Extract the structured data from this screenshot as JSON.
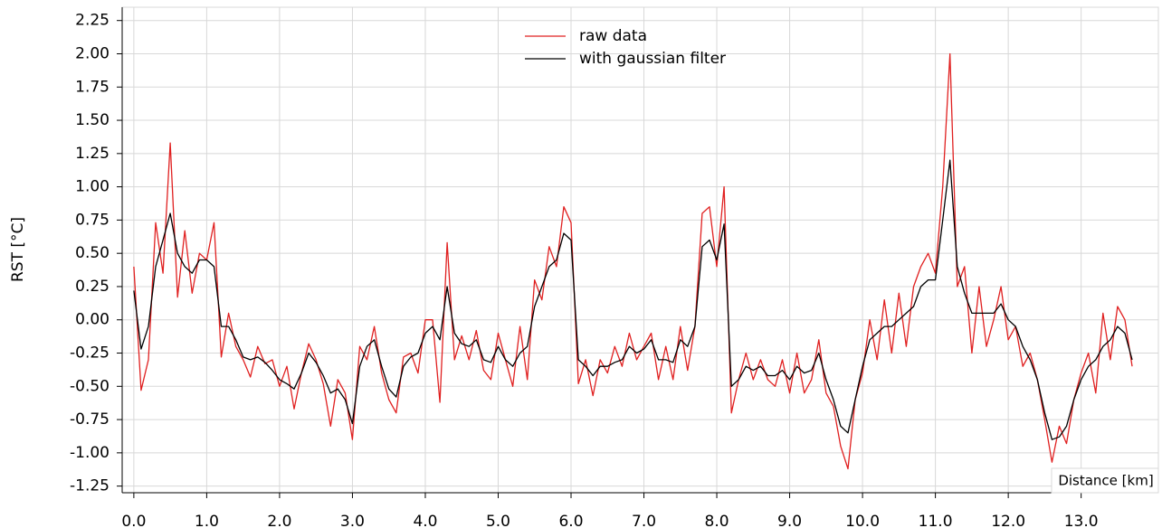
{
  "chart_data": {
    "type": "line",
    "y_label": "RST [°C]",
    "x_label": "Distance [km]",
    "x": [
      0.0,
      0.1,
      0.2,
      0.3,
      0.4,
      0.5,
      0.6,
      0.7,
      0.8,
      0.9,
      1.0,
      1.1,
      1.2,
      1.3,
      1.4,
      1.5,
      1.6,
      1.7,
      1.8,
      1.9,
      2.0,
      2.1,
      2.2,
      2.3,
      2.4,
      2.5,
      2.6,
      2.7,
      2.8,
      2.9,
      3.0,
      3.1,
      3.2,
      3.3,
      3.4,
      3.5,
      3.6,
      3.7,
      3.8,
      3.9,
      4.0,
      4.1,
      4.2,
      4.3,
      4.4,
      4.5,
      4.6,
      4.7,
      4.8,
      4.9,
      5.0,
      5.1,
      5.2,
      5.3,
      5.4,
      5.5,
      5.6,
      5.7,
      5.8,
      5.9,
      6.0,
      6.1,
      6.2,
      6.3,
      6.4,
      6.5,
      6.6,
      6.7,
      6.8,
      6.9,
      7.0,
      7.1,
      7.2,
      7.3,
      7.4,
      7.5,
      7.6,
      7.7,
      7.8,
      7.9,
      8.0,
      8.1,
      8.2,
      8.3,
      8.4,
      8.5,
      8.6,
      8.7,
      8.8,
      8.9,
      9.0,
      9.1,
      9.2,
      9.3,
      9.4,
      9.5,
      9.6,
      9.7,
      9.8,
      9.9,
      10.0,
      10.1,
      10.2,
      10.3,
      10.4,
      10.5,
      10.6,
      10.7,
      10.8,
      10.9,
      11.0,
      11.1,
      11.2,
      11.3,
      11.4,
      11.5,
      11.6,
      11.7,
      11.8,
      11.9,
      12.0,
      12.1,
      12.2,
      12.3,
      12.4,
      12.5,
      12.6,
      12.7,
      12.8,
      12.9,
      13.0,
      13.1,
      13.2,
      13.3,
      13.4,
      13.5,
      13.6,
      13.7
    ],
    "series": [
      {
        "name": "raw data",
        "color": "#e02020",
        "values": [
          0.4,
          -0.53,
          -0.3,
          0.73,
          0.35,
          1.33,
          0.17,
          0.67,
          0.2,
          0.5,
          0.45,
          0.73,
          -0.28,
          0.05,
          -0.2,
          -0.3,
          -0.43,
          -0.2,
          -0.33,
          -0.3,
          -0.5,
          -0.35,
          -0.67,
          -0.4,
          -0.18,
          -0.3,
          -0.48,
          -0.8,
          -0.45,
          -0.55,
          -0.9,
          -0.2,
          -0.3,
          -0.05,
          -0.4,
          -0.6,
          -0.7,
          -0.28,
          -0.25,
          -0.4,
          0.0,
          0.0,
          -0.62,
          0.58,
          -0.3,
          -0.12,
          -0.3,
          -0.08,
          -0.38,
          -0.45,
          -0.1,
          -0.3,
          -0.5,
          -0.05,
          -0.45,
          0.3,
          0.15,
          0.55,
          0.4,
          0.85,
          0.73,
          -0.48,
          -0.3,
          -0.57,
          -0.3,
          -0.4,
          -0.2,
          -0.35,
          -0.1,
          -0.3,
          -0.2,
          -0.1,
          -0.45,
          -0.2,
          -0.45,
          -0.05,
          -0.38,
          -0.05,
          0.8,
          0.85,
          0.4,
          1.0,
          -0.7,
          -0.45,
          -0.25,
          -0.45,
          -0.3,
          -0.45,
          -0.5,
          -0.3,
          -0.55,
          -0.25,
          -0.55,
          -0.45,
          -0.15,
          -0.55,
          -0.65,
          -0.95,
          -1.12,
          -0.6,
          -0.4,
          0.0,
          -0.3,
          0.15,
          -0.25,
          0.2,
          -0.2,
          0.25,
          0.4,
          0.5,
          0.35,
          1.0,
          2.0,
          0.25,
          0.4,
          -0.25,
          0.25,
          -0.2,
          0.0,
          0.25,
          -0.15,
          -0.05,
          -0.35,
          -0.25,
          -0.45,
          -0.75,
          -1.07,
          -0.8,
          -0.93,
          -0.6,
          -0.4,
          -0.25,
          -0.55,
          0.05,
          -0.3,
          0.1,
          0.0,
          -0.35
        ]
      },
      {
        "name": "with gaussian filter",
        "color": "#000000",
        "values": [
          0.22,
          -0.22,
          -0.05,
          0.4,
          0.6,
          0.8,
          0.5,
          0.4,
          0.35,
          0.45,
          0.45,
          0.4,
          -0.05,
          -0.05,
          -0.15,
          -0.28,
          -0.3,
          -0.28,
          -0.32,
          -0.38,
          -0.45,
          -0.48,
          -0.52,
          -0.4,
          -0.25,
          -0.32,
          -0.42,
          -0.55,
          -0.52,
          -0.6,
          -0.78,
          -0.35,
          -0.2,
          -0.15,
          -0.35,
          -0.52,
          -0.58,
          -0.35,
          -0.28,
          -0.25,
          -0.1,
          -0.05,
          -0.15,
          0.25,
          -0.1,
          -0.18,
          -0.2,
          -0.15,
          -0.3,
          -0.32,
          -0.2,
          -0.3,
          -0.35,
          -0.25,
          -0.2,
          0.1,
          0.25,
          0.4,
          0.45,
          0.65,
          0.6,
          -0.3,
          -0.35,
          -0.42,
          -0.35,
          -0.35,
          -0.32,
          -0.3,
          -0.2,
          -0.25,
          -0.22,
          -0.15,
          -0.3,
          -0.3,
          -0.32,
          -0.15,
          -0.2,
          -0.05,
          0.55,
          0.6,
          0.45,
          0.72,
          -0.5,
          -0.45,
          -0.35,
          -0.38,
          -0.35,
          -0.42,
          -0.42,
          -0.38,
          -0.45,
          -0.35,
          -0.4,
          -0.38,
          -0.25,
          -0.45,
          -0.6,
          -0.8,
          -0.85,
          -0.6,
          -0.35,
          -0.15,
          -0.1,
          -0.05,
          -0.05,
          0.0,
          0.05,
          0.1,
          0.25,
          0.3,
          0.3,
          0.75,
          1.2,
          0.4,
          0.2,
          0.05,
          0.05,
          0.05,
          0.05,
          0.12,
          0.0,
          -0.05,
          -0.2,
          -0.3,
          -0.45,
          -0.7,
          -0.9,
          -0.88,
          -0.8,
          -0.6,
          -0.45,
          -0.35,
          -0.3,
          -0.2,
          -0.15,
          -0.05,
          -0.1,
          -0.3
        ]
      }
    ],
    "xlim": [
      -0.16,
      14.06
    ],
    "ylim": [
      -1.3,
      2.35
    ],
    "xticks": [
      {
        "value": 0,
        "label": "0.0"
      },
      {
        "value": 1,
        "label": "1.0"
      },
      {
        "value": 2,
        "label": "2.0"
      },
      {
        "value": 3,
        "label": "3.0"
      },
      {
        "value": 4,
        "label": "4.0"
      },
      {
        "value": 5,
        "label": "5.0"
      },
      {
        "value": 6,
        "label": "6.0"
      },
      {
        "value": 7,
        "label": "7.0"
      },
      {
        "value": 8,
        "label": "8.0"
      },
      {
        "value": 9,
        "label": "9.0"
      },
      {
        "value": 10,
        "label": "10.0"
      },
      {
        "value": 11,
        "label": "11.0"
      },
      {
        "value": 12,
        "label": "12.0"
      },
      {
        "value": 13,
        "label": "13.0"
      }
    ],
    "yticks": [
      {
        "value": 2.25,
        "label": "2.25"
      },
      {
        "value": 2,
        "label": "2.00"
      },
      {
        "value": 1.75,
        "label": "1.75"
      },
      {
        "value": 1.5,
        "label": "1.50"
      },
      {
        "value": 1.25,
        "label": "1.25"
      },
      {
        "value": 1,
        "label": "1.00"
      },
      {
        "value": 0.75,
        "label": "0.75"
      },
      {
        "value": 0.5,
        "label": "0.50"
      },
      {
        "value": 0.25,
        "label": "0.25"
      },
      {
        "value": 0,
        "label": "0.00"
      },
      {
        "value": -0.25,
        "label": "-0.25"
      },
      {
        "value": -0.5,
        "label": "-0.50"
      },
      {
        "value": -0.75,
        "label": "-0.75"
      },
      {
        "value": -1,
        "label": "-1.00"
      },
      {
        "value": -1.25,
        "label": "-1.25"
      }
    ],
    "grid": true,
    "legend": "upper center"
  }
}
